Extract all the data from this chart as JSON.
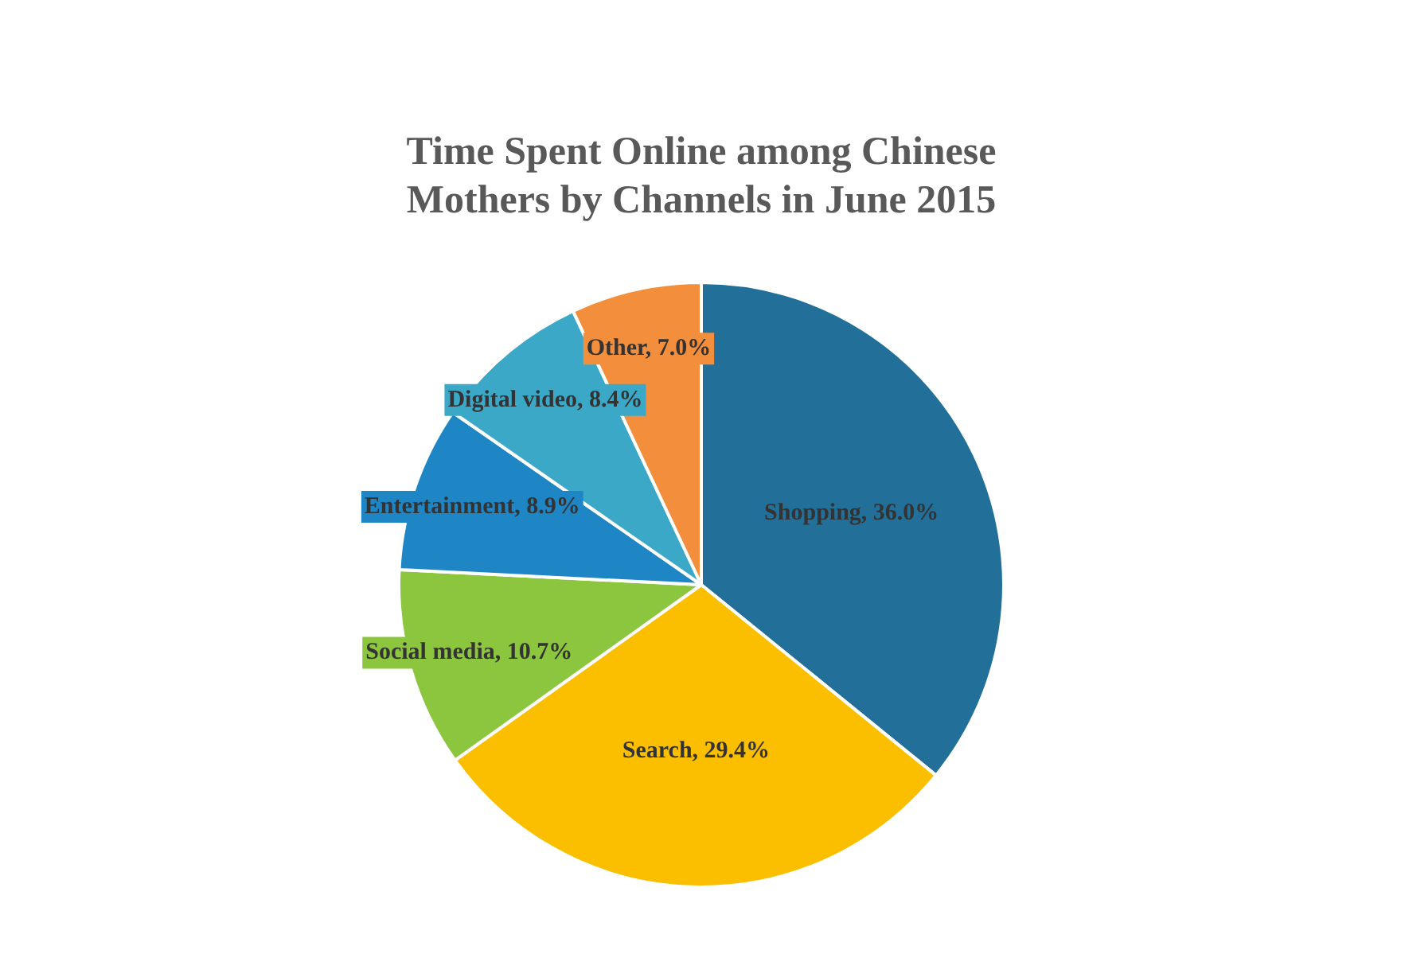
{
  "chart_data": {
    "type": "pie",
    "title": "Time Spent Online among Chinese Mothers by Channels in June 2015",
    "categories": [
      "Shopping",
      "Search",
      "Social media",
      "Entertainment",
      "Digital video",
      "Other"
    ],
    "values": [
      36.0,
      29.4,
      10.7,
      8.9,
      8.4,
      7.0
    ],
    "colors": [
      "#22709a",
      "#fbbf00",
      "#8cc63f",
      "#1f86c6",
      "#3ca8c8",
      "#f28e3c"
    ],
    "value_labels": [
      "36.0%",
      "29.4%",
      "10.7%",
      "8.9%",
      "8.4%",
      "7.0%"
    ]
  }
}
